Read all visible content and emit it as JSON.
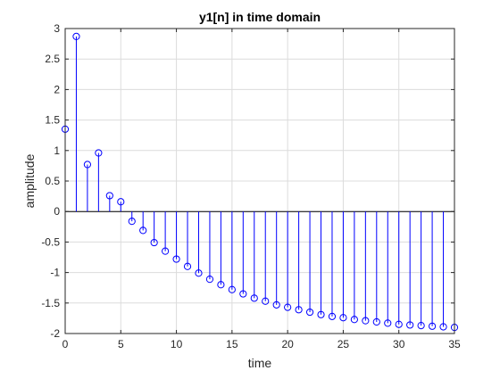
{
  "chart_data": {
    "type": "stem",
    "title": "y1[n] in time domain",
    "xlabel": "time",
    "ylabel": "amplitude",
    "xlim": [
      0,
      35
    ],
    "ylim": [
      -2,
      3
    ],
    "xticks": [
      "0",
      "5",
      "10",
      "15",
      "20",
      "25",
      "30",
      "35"
    ],
    "yticks": [
      "-2",
      "-1.5",
      "-1",
      "-0.5",
      "0",
      "0.5",
      "1",
      "1.5",
      "2",
      "2.5",
      "3"
    ],
    "grid": true,
    "series": [
      {
        "marker": "circle",
        "color": "#0000ff",
        "x": [
          0,
          1,
          2,
          3,
          4,
          5,
          6,
          7,
          8,
          9,
          10,
          11,
          12,
          13,
          14,
          15,
          16,
          17,
          18,
          19,
          20,
          21,
          22,
          23,
          24,
          25,
          26,
          27,
          28,
          29,
          30,
          31,
          32,
          33,
          34,
          35
        ],
        "y": [
          1.35,
          2.87,
          0.77,
          0.96,
          0.26,
          0.16,
          -0.16,
          -0.31,
          -0.51,
          -0.65,
          -0.78,
          -0.9,
          -1.01,
          -1.11,
          -1.2,
          -1.28,
          -1.35,
          -1.42,
          -1.47,
          -1.53,
          -1.57,
          -1.61,
          -1.65,
          -1.69,
          -1.72,
          -1.74,
          -1.77,
          -1.79,
          -1.81,
          -1.83,
          -1.85,
          -1.86,
          -1.87,
          -1.88,
          -1.89,
          -1.9
        ]
      }
    ]
  }
}
